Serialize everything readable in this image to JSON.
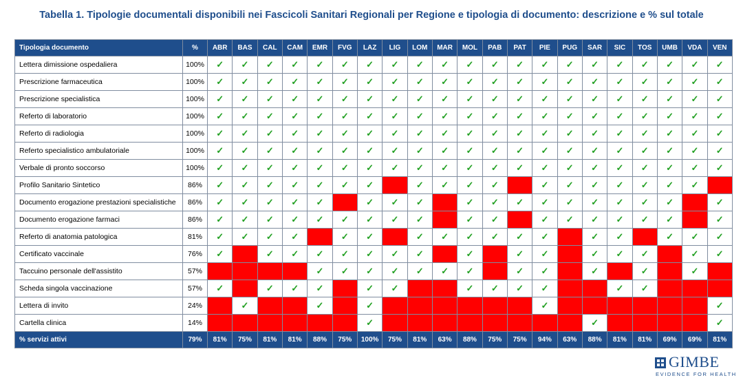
{
  "title": "Tabella 1. Tipologie documentali disponibili nei Fascicoli Sanitari Regionali per Regione e tipologia di documento: descrizione e % sul totale",
  "table": {
    "header_name": "Tipologia documento",
    "header_pct": "%",
    "regions": [
      "ABR",
      "BAS",
      "CAL",
      "CAM",
      "EMR",
      "FVG",
      "LAZ",
      "LIG",
      "LOM",
      "MAR",
      "MOL",
      "PAB",
      "PAT",
      "PIE",
      "PUG",
      "SAR",
      "SIC",
      "TOS",
      "UMB",
      "VDA",
      "VEN"
    ],
    "check_symbol": "✓",
    "available_color": "#ffffff",
    "unavailable_color": "#ff0000",
    "rows": [
      {
        "name": "Lettera dimissione ospedaliera",
        "pct": "100%",
        "cells": [
          1,
          1,
          1,
          1,
          1,
          1,
          1,
          1,
          1,
          1,
          1,
          1,
          1,
          1,
          1,
          1,
          1,
          1,
          1,
          1,
          1
        ]
      },
      {
        "name": "Prescrizione farmaceutica",
        "pct": "100%",
        "cells": [
          1,
          1,
          1,
          1,
          1,
          1,
          1,
          1,
          1,
          1,
          1,
          1,
          1,
          1,
          1,
          1,
          1,
          1,
          1,
          1,
          1
        ]
      },
      {
        "name": "Prescrizione specialistica",
        "pct": "100%",
        "cells": [
          1,
          1,
          1,
          1,
          1,
          1,
          1,
          1,
          1,
          1,
          1,
          1,
          1,
          1,
          1,
          1,
          1,
          1,
          1,
          1,
          1
        ]
      },
      {
        "name": "Referto di laboratorio",
        "pct": "100%",
        "cells": [
          1,
          1,
          1,
          1,
          1,
          1,
          1,
          1,
          1,
          1,
          1,
          1,
          1,
          1,
          1,
          1,
          1,
          1,
          1,
          1,
          1
        ]
      },
      {
        "name": "Referto di radiologia",
        "pct": "100%",
        "cells": [
          1,
          1,
          1,
          1,
          1,
          1,
          1,
          1,
          1,
          1,
          1,
          1,
          1,
          1,
          1,
          1,
          1,
          1,
          1,
          1,
          1
        ]
      },
      {
        "name": "Referto specialistico ambulatoriale",
        "pct": "100%",
        "cells": [
          1,
          1,
          1,
          1,
          1,
          1,
          1,
          1,
          1,
          1,
          1,
          1,
          1,
          1,
          1,
          1,
          1,
          1,
          1,
          1,
          1
        ]
      },
      {
        "name": "Verbale di pronto soccorso",
        "pct": "100%",
        "cells": [
          1,
          1,
          1,
          1,
          1,
          1,
          1,
          1,
          1,
          1,
          1,
          1,
          1,
          1,
          1,
          1,
          1,
          1,
          1,
          1,
          1
        ]
      },
      {
        "name": "Profilo Sanitario Sintetico",
        "pct": "86%",
        "cells": [
          1,
          1,
          1,
          1,
          1,
          1,
          1,
          0,
          1,
          1,
          1,
          1,
          0,
          1,
          1,
          1,
          1,
          1,
          1,
          1,
          0
        ]
      },
      {
        "name": "Documento erogazione prestazioni specialistiche",
        "pct": "86%",
        "cells": [
          1,
          1,
          1,
          1,
          1,
          0,
          1,
          1,
          1,
          0,
          1,
          1,
          1,
          1,
          1,
          1,
          1,
          1,
          1,
          0,
          1
        ]
      },
      {
        "name": "Documento erogazione farmaci",
        "pct": "86%",
        "cells": [
          1,
          1,
          1,
          1,
          1,
          1,
          1,
          1,
          1,
          0,
          1,
          1,
          0,
          1,
          1,
          1,
          1,
          1,
          1,
          0,
          1
        ]
      },
      {
        "name": "Referto di anatomia patologica",
        "pct": "81%",
        "cells": [
          1,
          1,
          1,
          1,
          0,
          1,
          1,
          0,
          1,
          1,
          1,
          1,
          1,
          1,
          0,
          1,
          1,
          0,
          1,
          1,
          1
        ]
      },
      {
        "name": "Certificato vaccinale",
        "pct": "76%",
        "cells": [
          1,
          0,
          1,
          1,
          1,
          1,
          1,
          1,
          1,
          0,
          1,
          0,
          1,
          1,
          0,
          1,
          1,
          1,
          0,
          1,
          1
        ]
      },
      {
        "name": "Taccuino personale dell'assistito",
        "pct": "57%",
        "cells": [
          0,
          0,
          0,
          0,
          1,
          1,
          1,
          1,
          1,
          1,
          1,
          0,
          1,
          1,
          0,
          1,
          0,
          1,
          0,
          1,
          0
        ]
      },
      {
        "name": "Scheda singola vaccinazione",
        "pct": "57%",
        "cells": [
          1,
          0,
          1,
          1,
          1,
          0,
          1,
          1,
          0,
          0,
          1,
          1,
          1,
          1,
          0,
          0,
          1,
          1,
          0,
          0,
          0
        ]
      },
      {
        "name": "Lettera di invito",
        "pct": "24%",
        "cells": [
          0,
          1,
          0,
          0,
          1,
          0,
          1,
          0,
          0,
          0,
          0,
          0,
          0,
          1,
          0,
          0,
          0,
          0,
          0,
          0,
          1
        ]
      },
      {
        "name": "Cartella clinica",
        "pct": "14%",
        "cells": [
          0,
          0,
          0,
          0,
          0,
          0,
          1,
          0,
          0,
          0,
          0,
          0,
          0,
          0,
          0,
          1,
          0,
          0,
          0,
          0,
          1
        ]
      }
    ],
    "footer_name": "% servizi attivi",
    "footer_pct": "79%",
    "footer_values": [
      "81%",
      "75%",
      "81%",
      "81%",
      "88%",
      "75%",
      "100%",
      "75%",
      "81%",
      "63%",
      "88%",
      "75%",
      "75%",
      "94%",
      "63%",
      "88%",
      "81%",
      "81%",
      "69%",
      "69%",
      "81%"
    ]
  },
  "logo": {
    "name": "GIMBE",
    "tagline": "EVIDENCE FOR HEALTH",
    "color": "#1f4e8c"
  }
}
